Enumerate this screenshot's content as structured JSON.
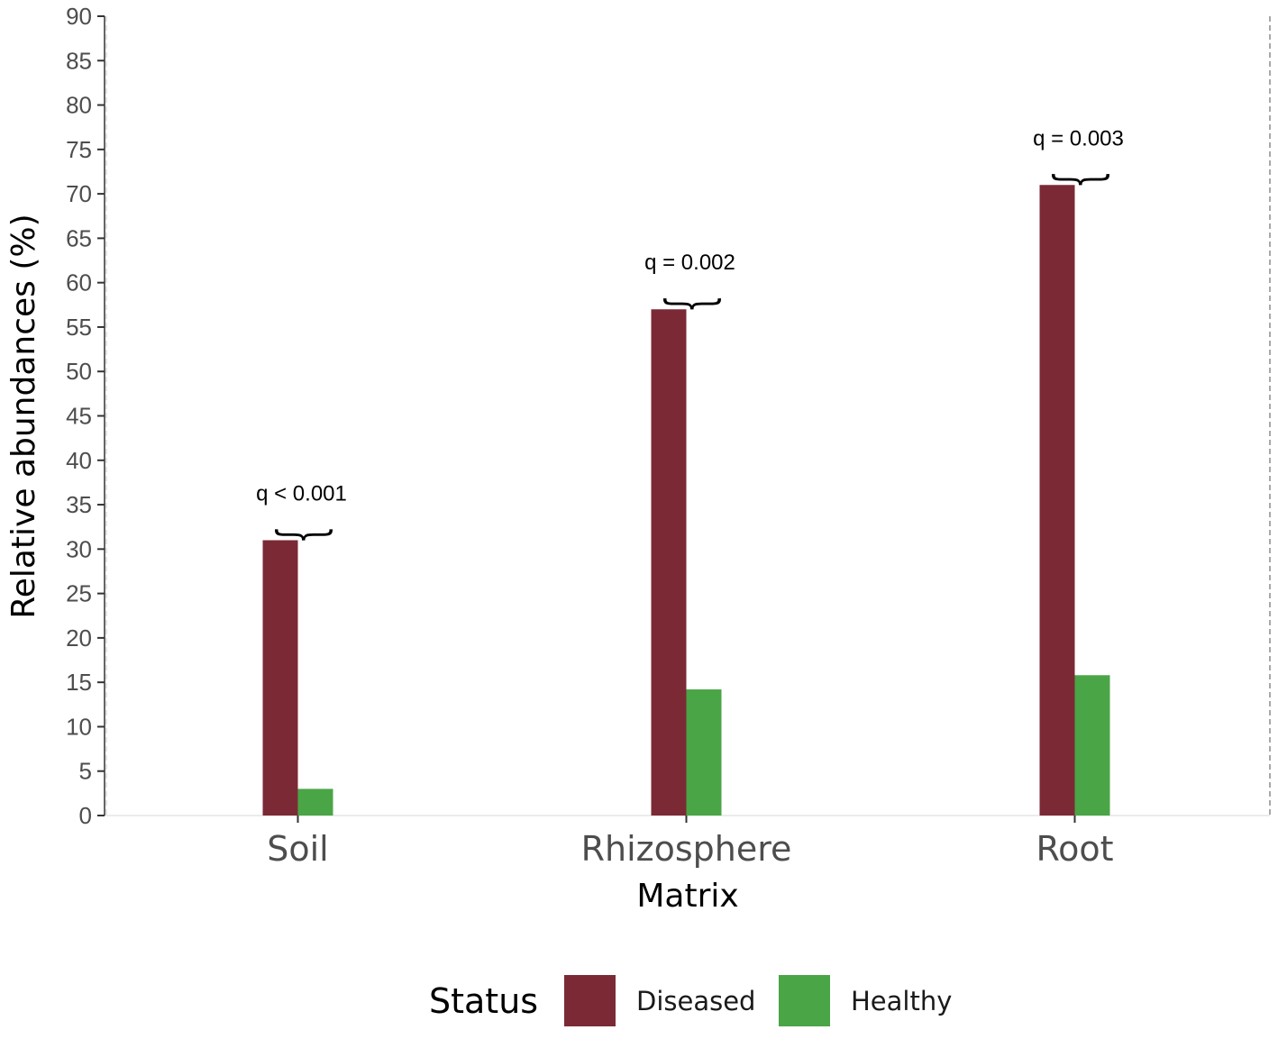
{
  "chart_data": {
    "type": "bar",
    "title": "",
    "xlabel": "Matrix",
    "ylabel": "Relative abundances (%)",
    "ylim": [
      0,
      90
    ],
    "yticks": [
      0,
      5,
      10,
      15,
      20,
      25,
      30,
      35,
      40,
      45,
      50,
      55,
      60,
      65,
      70,
      75,
      80,
      85,
      90
    ],
    "categories": [
      "Soil",
      "Rhizosphere",
      "Root"
    ],
    "series": [
      {
        "name": "Diseased",
        "color": "#7b2a35",
        "values": [
          31,
          57,
          71
        ]
      },
      {
        "name": "Healthy",
        "color": "#4aa546",
        "values": [
          3,
          14.2,
          15.8
        ]
      }
    ],
    "annotations": [
      "q < 0.001",
      "q = 0.002",
      "q = 0.003"
    ],
    "legend": {
      "title": "Status",
      "position": "bottom"
    },
    "grid": false
  }
}
